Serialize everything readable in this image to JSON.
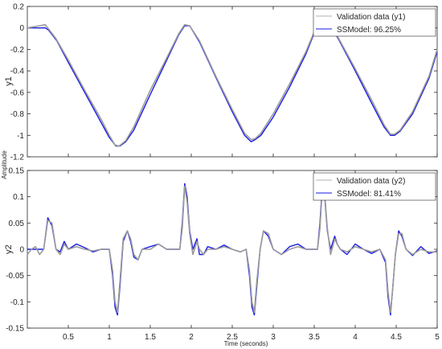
{
  "figure": {
    "shared_ylabel": "Amplitude",
    "shared_xlabel": "Time (seconds)"
  },
  "colors": {
    "validation": "#9a9a9a",
    "validation_legend": "#b0b0b0",
    "model": "#1a1ae6",
    "axes": "#262626"
  },
  "chart_data": [
    {
      "type": "line",
      "ylabel": "y1",
      "xlim": [
        0,
        5
      ],
      "ylim": [
        -1.2,
        0.2
      ],
      "yticks": [
        -1.2,
        -1,
        -0.8,
        -0.6,
        -0.4,
        -0.2,
        0,
        0.2
      ],
      "ytick_labels": [
        "-1.2",
        "-1",
        "-0.8",
        "-0.6",
        "-0.4",
        "-0.2",
        "0",
        "0.2"
      ],
      "xticks": [
        0.5,
        1,
        1.5,
        2,
        2.5,
        3,
        3.5,
        4,
        4.5,
        5
      ],
      "xtick_labels": [],
      "grid": false,
      "legend": "top-right",
      "series": [
        {
          "name": "Validation data (y1)",
          "x": [
            0,
            0.15,
            0.22,
            0.25,
            0.35,
            0.5,
            0.7,
            0.9,
            1.0,
            1.07,
            1.12,
            1.2,
            1.3,
            1.5,
            1.7,
            1.85,
            1.92,
            1.98,
            2.1,
            2.3,
            2.5,
            2.65,
            2.73,
            2.78,
            2.85,
            3.0,
            3.2,
            3.4,
            3.52,
            3.58,
            3.65,
            3.8,
            4.0,
            4.2,
            4.35,
            4.43,
            4.48,
            4.55,
            4.7,
            4.9,
            5.0
          ],
          "y": [
            0,
            0.02,
            0.03,
            0.0,
            -0.1,
            -0.3,
            -0.58,
            -0.85,
            -1.0,
            -1.09,
            -1.1,
            -1.05,
            -0.92,
            -0.58,
            -0.28,
            -0.05,
            0.03,
            0.02,
            -0.12,
            -0.45,
            -0.76,
            -0.98,
            -1.04,
            -1.03,
            -0.98,
            -0.8,
            -0.52,
            -0.22,
            0.0,
            0.09,
            0.08,
            -0.1,
            -0.38,
            -0.67,
            -0.9,
            -0.99,
            -0.99,
            -0.95,
            -0.78,
            -0.45,
            -0.2
          ]
        },
        {
          "name": "SSModel: 96.25%",
          "x": [
            0,
            0.15,
            0.22,
            0.26,
            0.36,
            0.5,
            0.7,
            0.9,
            1.0,
            1.08,
            1.13,
            1.2,
            1.3,
            1.5,
            1.7,
            1.85,
            1.92,
            1.98,
            2.1,
            2.3,
            2.5,
            2.65,
            2.73,
            2.78,
            2.85,
            3.0,
            3.2,
            3.4,
            3.52,
            3.58,
            3.65,
            3.8,
            4.0,
            4.2,
            4.35,
            4.43,
            4.48,
            4.55,
            4.7,
            4.9,
            5.0
          ],
          "y": [
            0,
            0.0,
            0.0,
            -0.02,
            -0.12,
            -0.32,
            -0.6,
            -0.88,
            -1.02,
            -1.1,
            -1.1,
            -1.06,
            -0.95,
            -0.62,
            -0.3,
            -0.06,
            0.02,
            0.02,
            -0.13,
            -0.46,
            -0.78,
            -1.0,
            -1.06,
            -1.04,
            -1.0,
            -0.83,
            -0.55,
            -0.24,
            -0.01,
            0.08,
            0.08,
            -0.11,
            -0.4,
            -0.7,
            -0.92,
            -1.0,
            -1.0,
            -0.96,
            -0.8,
            -0.47,
            -0.22
          ]
        }
      ]
    },
    {
      "type": "line",
      "ylabel": "y2",
      "xlim": [
        0,
        5
      ],
      "ylim": [
        -0.15,
        0.15
      ],
      "yticks": [
        -0.15,
        -0.1,
        -0.05,
        0,
        0.05,
        0.1,
        0.15
      ],
      "ytick_labels": [
        "-0.15",
        "-0.1",
        "-0.05",
        "0",
        "0.05",
        "0.1",
        "0.15"
      ],
      "xticks": [
        0.5,
        1,
        1.5,
        2,
        2.5,
        3,
        3.5,
        4,
        4.5,
        5
      ],
      "xtick_labels": [
        "0.5",
        "1",
        "1.5",
        "2",
        "2.5",
        "3",
        "3.5",
        "4",
        "4.5",
        "5"
      ],
      "grid": false,
      "legend": "top-right",
      "series": [
        {
          "name": "Validation data (y2)",
          "x": [
            0,
            0.05,
            0.1,
            0.15,
            0.2,
            0.25,
            0.3,
            0.35,
            0.4,
            0.45,
            0.5,
            0.6,
            0.7,
            0.8,
            0.9,
            1.0,
            1.04,
            1.07,
            1.1,
            1.13,
            1.17,
            1.22,
            1.26,
            1.3,
            1.35,
            1.4,
            1.5,
            1.6,
            1.7,
            1.8,
            1.86,
            1.89,
            1.92,
            1.95,
            1.98,
            2.02,
            2.07,
            2.1,
            2.15,
            2.2,
            2.3,
            2.4,
            2.5,
            2.6,
            2.67,
            2.71,
            2.74,
            2.77,
            2.8,
            2.84,
            2.88,
            2.94,
            3.0,
            3.1,
            3.2,
            3.3,
            3.4,
            3.5,
            3.54,
            3.57,
            3.6,
            3.63,
            3.66,
            3.7,
            3.75,
            3.78,
            3.82,
            3.9,
            4.0,
            4.1,
            4.2,
            4.3,
            4.37,
            4.4,
            4.43,
            4.46,
            4.49,
            4.53,
            4.57,
            4.62,
            4.7,
            4.8,
            4.9,
            5.0
          ],
          "y": [
            -0.01,
            0.0,
            0.005,
            -0.01,
            0.0,
            0.055,
            0.05,
            0.0,
            -0.01,
            0.01,
            0.0,
            0.005,
            0.0,
            -0.003,
            0.0,
            0.0,
            -0.04,
            -0.1,
            -0.12,
            -0.06,
            0.02,
            0.035,
            0.02,
            -0.01,
            -0.02,
            0.0,
            0.0,
            0.01,
            0.0,
            0.0,
            0.0,
            0.04,
            0.12,
            0.09,
            0.03,
            -0.01,
            0.015,
            0.0,
            -0.01,
            0.0,
            0.0,
            0.005,
            0.0,
            -0.005,
            0.0,
            -0.04,
            -0.1,
            -0.12,
            -0.06,
            0.0,
            0.035,
            0.03,
            0.0,
            -0.01,
            0.0,
            0.005,
            0.0,
            0.0,
            0.0,
            0.04,
            0.12,
            0.1,
            0.04,
            -0.01,
            0.02,
            0.01,
            0.0,
            -0.005,
            0.005,
            0.0,
            -0.005,
            0.0,
            -0.02,
            -0.08,
            -0.12,
            -0.07,
            -0.01,
            0.03,
            0.03,
            0.0,
            -0.01,
            0.0,
            -0.005,
            -0.005
          ]
        },
        {
          "name": "SSModel: 81.41%",
          "x": [
            0,
            0.05,
            0.1,
            0.15,
            0.2,
            0.25,
            0.3,
            0.35,
            0.4,
            0.45,
            0.5,
            0.6,
            0.7,
            0.8,
            0.9,
            1.0,
            1.04,
            1.07,
            1.1,
            1.13,
            1.17,
            1.22,
            1.26,
            1.3,
            1.35,
            1.4,
            1.5,
            1.6,
            1.7,
            1.8,
            1.86,
            1.89,
            1.92,
            1.95,
            1.98,
            2.02,
            2.07,
            2.1,
            2.15,
            2.2,
            2.3,
            2.4,
            2.5,
            2.6,
            2.67,
            2.71,
            2.74,
            2.77,
            2.8,
            2.84,
            2.88,
            2.94,
            3.0,
            3.1,
            3.2,
            3.3,
            3.4,
            3.5,
            3.54,
            3.57,
            3.6,
            3.63,
            3.66,
            3.7,
            3.75,
            3.78,
            3.82,
            3.9,
            4.0,
            4.1,
            4.2,
            4.3,
            4.37,
            4.4,
            4.43,
            4.46,
            4.49,
            4.53,
            4.57,
            4.62,
            4.7,
            4.8,
            4.9,
            5.0
          ],
          "y": [
            0.0,
            0.0,
            0.0,
            0.0,
            0.0,
            0.06,
            0.045,
            0.0,
            -0.005,
            0.015,
            0.0,
            0.01,
            0.003,
            -0.005,
            0.0,
            0.0,
            -0.05,
            -0.11,
            -0.125,
            -0.07,
            0.015,
            0.035,
            0.015,
            -0.015,
            -0.02,
            0.0,
            0.005,
            0.01,
            0.0,
            0.0,
            0.0,
            0.05,
            0.125,
            0.1,
            0.035,
            0.0,
            0.02,
            -0.01,
            -0.01,
            0.005,
            0.0,
            0.008,
            0.0,
            -0.005,
            0.0,
            -0.05,
            -0.11,
            -0.125,
            -0.07,
            0.0,
            0.035,
            0.025,
            0.0,
            -0.01,
            0.005,
            0.01,
            0.0,
            0.0,
            0.0,
            0.05,
            0.125,
            0.095,
            0.035,
            0.0,
            0.025,
            0.01,
            0.0,
            -0.01,
            0.01,
            0.0,
            -0.008,
            0.0,
            -0.025,
            -0.09,
            -0.125,
            -0.07,
            -0.01,
            0.035,
            0.025,
            0.0,
            -0.012,
            0.005,
            -0.008,
            -0.003
          ]
        }
      ]
    }
  ]
}
